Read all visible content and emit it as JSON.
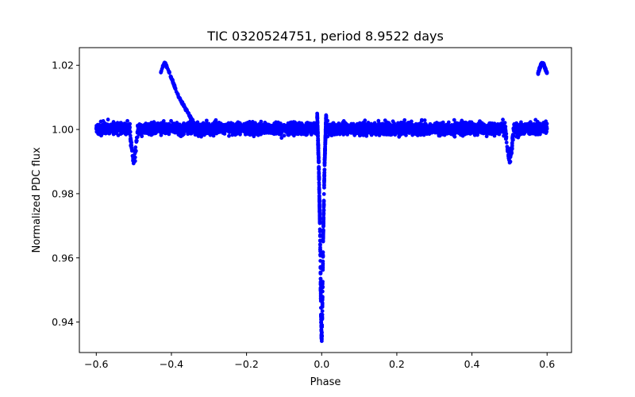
{
  "chart_data": {
    "type": "scatter",
    "title": "TIC 0320524751, period 8.9522 days",
    "xlabel": "Phase",
    "ylabel": "Normalized PDC flux",
    "xlim": [
      -0.645,
      0.665
    ],
    "ylim": [
      0.9305,
      1.0255
    ],
    "xticks": [
      -0.6,
      -0.4,
      -0.2,
      0.0,
      0.2,
      0.4,
      0.6
    ],
    "xtick_labels": [
      "−0.6",
      "−0.4",
      "−0.2",
      "0.0",
      "0.2",
      "0.4",
      "0.6"
    ],
    "yticks": [
      0.94,
      0.96,
      0.98,
      1.0,
      1.02
    ],
    "ytick_labels": [
      "0.94",
      "0.96",
      "0.98",
      "1.00",
      "1.02"
    ],
    "grid": false,
    "series_color": "#0000ff",
    "series": [
      {
        "name": "baseline",
        "description_x_range": [
          -0.6,
          0.6
        ],
        "baseline_flux": 1.0,
        "scatter_band": [
          0.997,
          1.004
        ]
      },
      {
        "name": "primary-eclipse",
        "x": [
          -0.012,
          -0.008,
          -0.006,
          -0.004,
          -0.003,
          -0.002,
          -0.001,
          0.0,
          0.001,
          0.002,
          0.003,
          0.004,
          0.006,
          0.008,
          0.012
        ],
        "y": [
          1.005,
          0.99,
          0.978,
          0.965,
          0.955,
          0.945,
          0.938,
          0.934,
          0.938,
          0.946,
          0.956,
          0.966,
          0.979,
          0.99,
          1.005
        ]
      },
      {
        "name": "secondary-eclipse-left",
        "x": [
          -0.51,
          -0.505,
          -0.5,
          -0.495,
          -0.49
        ],
        "y": [
          0.998,
          0.993,
          0.99,
          0.993,
          0.998
        ]
      },
      {
        "name": "secondary-eclipse-right",
        "x": [
          0.49,
          0.495,
          0.5,
          0.505,
          0.51
        ],
        "y": [
          0.998,
          0.993,
          0.99,
          0.993,
          0.998
        ]
      },
      {
        "name": "high-flux-arc",
        "x": [
          -0.43,
          -0.425,
          -0.42,
          -0.415,
          -0.41,
          -0.4,
          -0.39,
          -0.38,
          -0.37,
          -0.36,
          -0.35,
          -0.34,
          -0.33
        ],
        "y": [
          1.017,
          1.019,
          1.0205,
          1.0205,
          1.019,
          1.016,
          1.013,
          1.01,
          1.008,
          1.006,
          1.004,
          1.002,
          1.0005
        ]
      },
      {
        "name": "high-flux-arc-right",
        "x": [
          0.575,
          0.58,
          0.585,
          0.59,
          0.595,
          0.6
        ],
        "y": [
          1.017,
          1.019,
          1.0205,
          1.0205,
          1.019,
          1.0175
        ]
      }
    ]
  }
}
